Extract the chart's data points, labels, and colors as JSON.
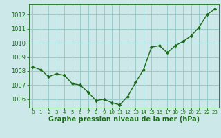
{
  "x": [
    0,
    1,
    2,
    3,
    4,
    5,
    6,
    7,
    8,
    9,
    10,
    11,
    12,
    13,
    14,
    15,
    16,
    17,
    18,
    19,
    20,
    21,
    22,
    23
  ],
  "y": [
    1008.3,
    1008.1,
    1007.6,
    1007.8,
    1007.7,
    1007.1,
    1007.0,
    1006.5,
    1005.9,
    1006.0,
    1005.75,
    1005.6,
    1006.2,
    1007.2,
    1008.1,
    1009.7,
    1009.8,
    1009.3,
    1009.8,
    1010.1,
    1010.5,
    1011.1,
    1012.0,
    1012.4
  ],
  "line_color": "#1a6b1a",
  "marker": "D",
  "marker_size": 2.2,
  "bg_color": "#cce8e8",
  "grid_color": "#99cccc",
  "xlabel": "Graphe pression niveau de la mer (hPa)",
  "xlabel_color": "#1a6b1a",
  "tick_color": "#1a6b1a",
  "ylim": [
    1005.4,
    1012.75
  ],
  "yticks": [
    1006,
    1007,
    1008,
    1009,
    1010,
    1011,
    1012
  ],
  "xlim": [
    -0.5,
    23.5
  ],
  "xticks": [
    0,
    1,
    2,
    3,
    4,
    5,
    6,
    7,
    8,
    9,
    10,
    11,
    12,
    13,
    14,
    15,
    16,
    17,
    18,
    19,
    20,
    21,
    22,
    23
  ],
  "ytick_fontsize": 6.0,
  "xtick_fontsize": 5.0,
  "xlabel_fontsize": 7.0,
  "linewidth": 1.0
}
